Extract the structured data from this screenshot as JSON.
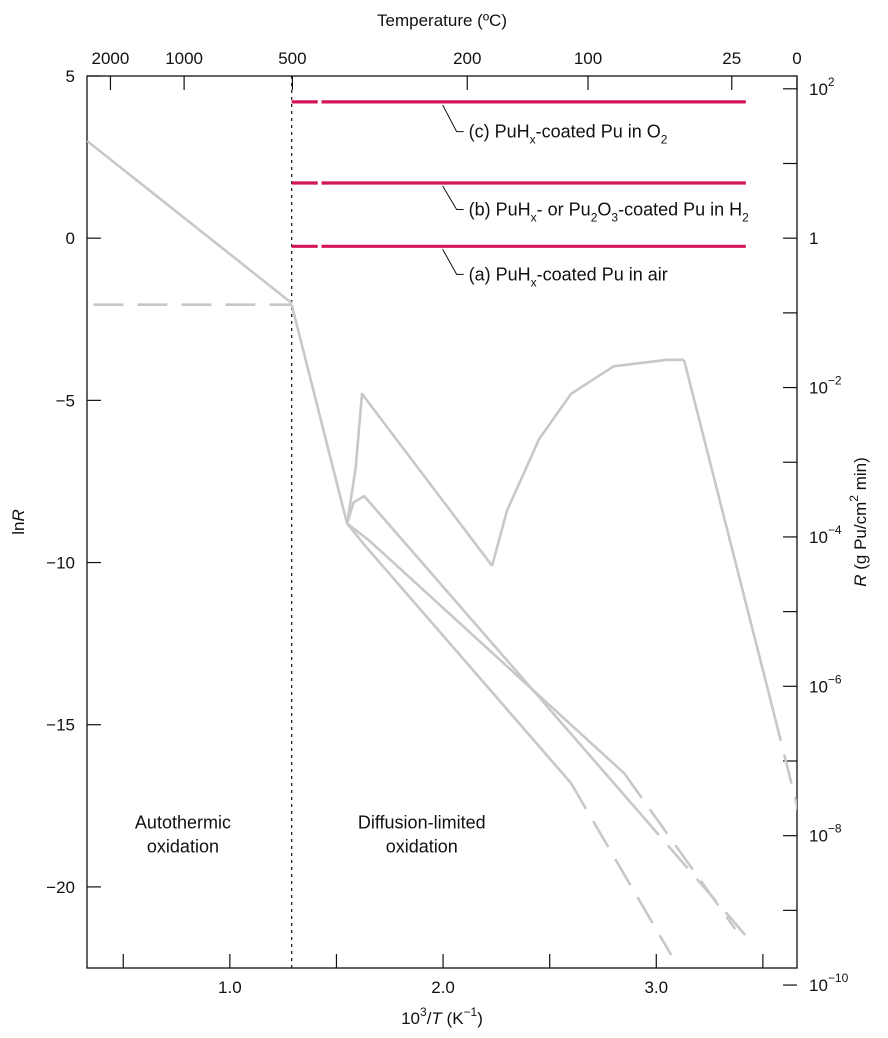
{
  "chart_data": {
    "type": "line",
    "title": "",
    "top_axis": {
      "label": "Temperature (ºC)",
      "ticks": [
        {
          "label": "2000",
          "celsius": 2000
        },
        {
          "label": "1000",
          "celsius": 1000
        },
        {
          "label": "500",
          "celsius": 500
        },
        {
          "label": "200",
          "celsius": 200
        },
        {
          "label": "100",
          "celsius": 100
        },
        {
          "label": "25",
          "celsius": 25
        },
        {
          "label": "0",
          "celsius": 0
        }
      ]
    },
    "x_axis": {
      "label_base": "10",
      "label_sup": "3",
      "label_mid": "/",
      "label_var": "T",
      "label_unit_open": " (K",
      "label_unit_sup": "−1",
      "label_unit_close": ")",
      "range": [
        0.33,
        3.66
      ],
      "ticks": [
        {
          "label": "1.0",
          "value": 1.0
        },
        {
          "label": "2.0",
          "value": 2.0
        },
        {
          "label": "3.0",
          "value": 3.0
        }
      ],
      "minor_ticks": [
        0.5,
        1.5,
        2.5,
        3.5
      ]
    },
    "y_axis_left": {
      "label_prefix": "ln",
      "label_var": "R",
      "range": [
        -22.5,
        5
      ],
      "ticks": [
        {
          "label": "5",
          "value": 5
        },
        {
          "label": "0",
          "value": 0
        },
        {
          "label": "−5",
          "value": -5
        },
        {
          "label": "−10",
          "value": -10
        },
        {
          "label": "−15",
          "value": -15
        },
        {
          "label": "−20",
          "value": -20
        }
      ]
    },
    "y_axis_right": {
      "label_var": "R",
      "label_pre": " (g Pu/cm",
      "label_sup": "2",
      "label_post": " min)",
      "ticks": [
        {
          "base": "10",
          "exp": "2",
          "log10": 2
        },
        {
          "base": "1",
          "exp": "",
          "log10": 0
        },
        {
          "base": "10",
          "exp": "−2",
          "log10": -2
        },
        {
          "base": "10",
          "exp": "−4",
          "log10": -4
        },
        {
          "base": "10",
          "exp": "−6",
          "log10": -6
        },
        {
          "base": "10",
          "exp": "−8",
          "log10": -8
        },
        {
          "base": "10",
          "exp": "−10",
          "log10": -10
        }
      ],
      "minor_ticks_log10": [
        1,
        -1,
        -3,
        -5,
        -7,
        -9
      ]
    },
    "boundary": {
      "x": 1.29,
      "style": "dotted"
    },
    "regions": [
      {
        "line1": "Autothermic",
        "line2": "oxidation",
        "x": 0.78,
        "y": -18.2
      },
      {
        "line1": "Diffusion-limited",
        "line2": "oxidation",
        "x": 1.9,
        "y": -18.2
      }
    ],
    "series": [
      {
        "id": "c",
        "color": "#d4145a",
        "annotation": {
          "pre": "(c) PuH",
          "s1": "x",
          "mid": "-coated Pu in O",
          "s2": "2",
          "post": "",
          "x": 2.12,
          "y": 3.1
        },
        "segments": [
          {
            "dash": true,
            "points": [
              [
                1.29,
                4.2
              ],
              [
                1.43,
                4.2
              ]
            ]
          },
          {
            "dash": false,
            "points": [
              [
                1.43,
                4.2
              ],
              [
                3.42,
                4.2
              ]
            ]
          }
        ]
      },
      {
        "id": "b",
        "color": "#d4145a",
        "annotation": {
          "pre": "(b) PuH",
          "s1": "x",
          "mid": "- or Pu",
          "s2": "2",
          "mid2": "O",
          "s3": "3",
          "mid3": "-coated Pu in H",
          "s4": "2",
          "x": 2.12,
          "y": 0.7
        },
        "segments": [
          {
            "dash": true,
            "points": [
              [
                1.29,
                1.7
              ],
              [
                1.43,
                1.7
              ]
            ]
          },
          {
            "dash": false,
            "points": [
              [
                1.43,
                1.7
              ],
              [
                3.42,
                1.7
              ]
            ]
          }
        ]
      },
      {
        "id": "a",
        "color": "#d4145a",
        "annotation": {
          "pre": "(a) PuH",
          "s1": "x",
          "mid": "-coated Pu in air",
          "x": 2.12,
          "y": -1.3
        },
        "segments": [
          {
            "dash": true,
            "points": [
              [
                1.29,
                -0.25
              ],
              [
                1.43,
                -0.25
              ]
            ]
          },
          {
            "dash": false,
            "points": [
              [
                1.43,
                -0.25
              ],
              [
                3.42,
                -0.25
              ]
            ]
          }
        ]
      },
      {
        "id": "autothermic-upper",
        "color": "#c8c8c8",
        "segments": [
          {
            "dash": false,
            "points": [
              [
                0.33,
                3.0
              ],
              [
                1.29,
                -2.0
              ]
            ]
          }
        ]
      },
      {
        "id": "autothermic-lower",
        "color": "#c8c8c8",
        "segments": [
          {
            "dash": true,
            "points": [
              [
                0.36,
                -2.05
              ],
              [
                1.29,
                -2.05
              ]
            ]
          }
        ]
      },
      {
        "id": "descent",
        "color": "#c8c8c8",
        "segments": [
          {
            "dash": false,
            "points": [
              [
                1.29,
                -2.05
              ],
              [
                1.55,
                -8.8
              ]
            ]
          }
        ]
      },
      {
        "id": "curve-1",
        "color": "#c8c8c8",
        "segments": [
          {
            "dash": false,
            "points": [
              [
                1.55,
                -8.8
              ],
              [
                1.59,
                -7.1
              ],
              [
                1.62,
                -4.8
              ],
              [
                2.23,
                -10.1
              ]
            ]
          },
          {
            "dash": false,
            "points": [
              [
                2.23,
                -10.1
              ],
              [
                2.3,
                -8.4
              ],
              [
                2.45,
                -6.2
              ],
              [
                2.6,
                -4.8
              ],
              [
                2.8,
                -3.95
              ],
              [
                3.05,
                -3.75
              ],
              [
                3.13,
                -3.75
              ]
            ]
          },
          {
            "dash": false,
            "points": [
              [
                3.13,
                -3.75
              ],
              [
                3.55,
                -14.6
              ]
            ]
          },
          {
            "dash": true,
            "points": [
              [
                3.55,
                -14.6
              ],
              [
                3.79,
                -20.9
              ]
            ]
          }
        ]
      },
      {
        "id": "curve-2",
        "color": "#c8c8c8",
        "segments": [
          {
            "dash": false,
            "points": [
              [
                1.55,
                -8.8
              ],
              [
                1.58,
                -8.15
              ],
              [
                1.63,
                -7.95
              ],
              [
                2.92,
                -17.7
              ]
            ]
          },
          {
            "dash": true,
            "points": [
              [
                2.92,
                -17.7
              ],
              [
                3.42,
                -21.5
              ]
            ]
          }
        ]
      },
      {
        "id": "curve-3",
        "color": "#c8c8c8",
        "segments": [
          {
            "dash": false,
            "points": [
              [
                1.55,
                -8.8
              ],
              [
                1.65,
                -9.3
              ],
              [
                2.85,
                -16.5
              ]
            ]
          },
          {
            "dash": true,
            "points": [
              [
                2.85,
                -16.5
              ],
              [
                3.37,
                -21.3
              ]
            ]
          }
        ]
      },
      {
        "id": "curve-4",
        "color": "#c8c8c8",
        "segments": [
          {
            "dash": false,
            "points": [
              [
                1.55,
                -8.8
              ],
              [
                1.63,
                -9.45
              ],
              [
                2.6,
                -16.8
              ]
            ]
          },
          {
            "dash": true,
            "points": [
              [
                2.6,
                -16.8
              ],
              [
                3.07,
                -22.1
              ]
            ]
          }
        ]
      }
    ],
    "grid": false,
    "legend": "none"
  }
}
